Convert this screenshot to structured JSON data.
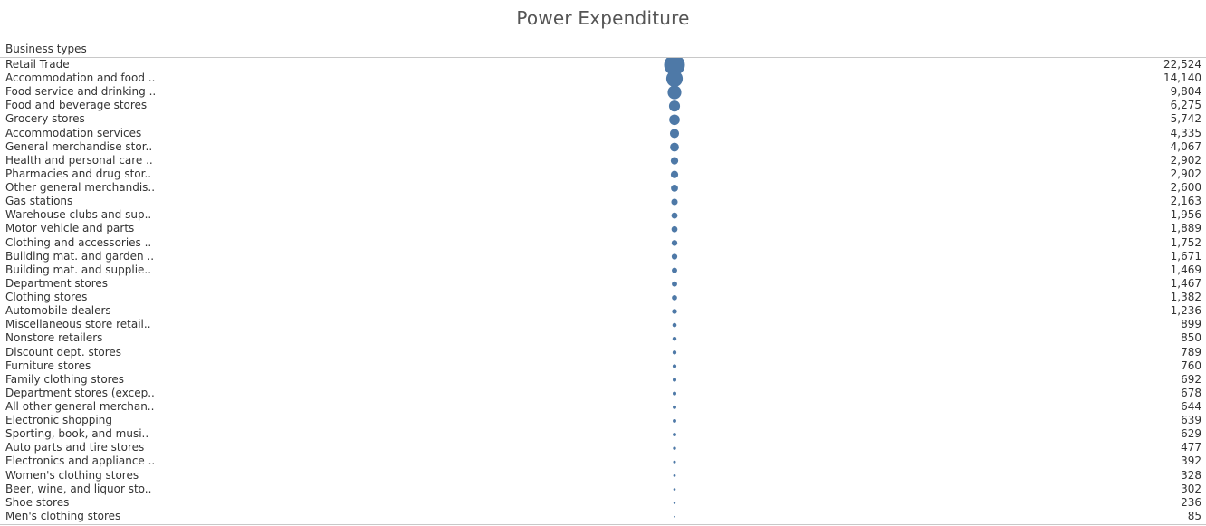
{
  "title": "Power Expenditure",
  "row_header": "Business types",
  "colors": {
    "mark": "#4e79a7"
  },
  "chart_data": {
    "type": "scatter",
    "title": "Power Expenditure",
    "row_field": "Business types",
    "encoding": "circle size",
    "categories": [
      "Retail Trade",
      "Accommodation and food ..",
      "Food service and drinking ..",
      "Food and beverage stores",
      "Grocery stores",
      "Accommodation services",
      "General merchandise stor..",
      "Health and personal care ..",
      "Pharmacies and drug stor..",
      "Other general merchandis..",
      "Gas stations",
      "Warehouse clubs and sup..",
      "Motor vehicle and parts",
      "Clothing and accessories ..",
      "Building mat. and garden ..",
      "Building mat. and supplie..",
      "Department stores",
      "Clothing stores",
      "Automobile dealers",
      "Miscellaneous store retail..",
      "Nonstore retailers",
      "Discount dept. stores",
      "Furniture stores",
      "Family clothing stores",
      "Department stores (excep..",
      "All other general merchan..",
      "Electronic shopping",
      "Sporting, book, and  musi..",
      "Auto parts and tire stores",
      "Electronics and appliance ..",
      "Women's clothing stores",
      "Beer, wine, and liquor sto..",
      "Shoe stores",
      "Men's clothing stores"
    ],
    "value_labels": [
      "22,524",
      "14,140",
      "9,804",
      "6,275",
      "5,742",
      "4,335",
      "4,067",
      "2,902",
      "2,902",
      "2,600",
      "2,163",
      "1,956",
      "1,889",
      "1,752",
      "1,671",
      "1,469",
      "1,467",
      "1,382",
      "1,236",
      "899",
      "850",
      "789",
      "760",
      "692",
      "678",
      "644",
      "639",
      "629",
      "477",
      "392",
      "328",
      "302",
      "236",
      "85"
    ],
    "values": [
      22524,
      14140,
      9804,
      6275,
      5742,
      4335,
      4067,
      2902,
      2902,
      2600,
      2163,
      1956,
      1889,
      1752,
      1671,
      1469,
      1467,
      1382,
      1236,
      899,
      850,
      789,
      760,
      692,
      678,
      644,
      639,
      629,
      477,
      392,
      328,
      302,
      236,
      85
    ]
  }
}
